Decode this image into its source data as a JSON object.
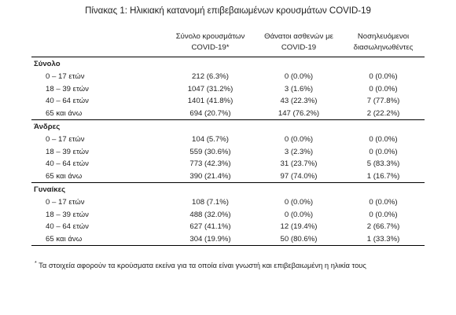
{
  "title": "Πίνακας 1: Ηλικιακή κατανομή επιβεβαιωμένων κρουσμάτων COVID-19",
  "columns": [
    {
      "line1": "Σύνολο κρουσμάτων",
      "line2": "COVID-19*"
    },
    {
      "line1": "Θάνατοι ασθενών με",
      "line2": "COVID-19"
    },
    {
      "line1": "Νοσηλευόμενοι",
      "line2": "διασωληνωθέντες"
    }
  ],
  "groups": [
    {
      "name": "Σύνολο",
      "rows": [
        {
          "age": "0 – 17 ετών",
          "cases": "212 (6.3%)",
          "deaths": "0 (0.0%)",
          "intubated": "0 (0.0%)"
        },
        {
          "age": "18 – 39 ετών",
          "cases": "1047 (31.2%)",
          "deaths": "3 (1.6%)",
          "intubated": "0 (0.0%)"
        },
        {
          "age": "40 – 64 ετών",
          "cases": "1401 (41.8%)",
          "deaths": "43 (22.3%)",
          "intubated": "7 (77.8%)"
        },
        {
          "age": "65 και άνω",
          "cases": "694 (20.7%)",
          "deaths": "147 (76.2%)",
          "intubated": "2 (22.2%)"
        }
      ]
    },
    {
      "name": "Άνδρες",
      "rows": [
        {
          "age": "0 – 17 ετών",
          "cases": "104 (5.7%)",
          "deaths": "0 (0.0%)",
          "intubated": "0 (0.0%)"
        },
        {
          "age": "18 – 39 ετών",
          "cases": "559 (30.6%)",
          "deaths": "3 (2.3%)",
          "intubated": "0 (0.0%)"
        },
        {
          "age": "40 – 64 ετών",
          "cases": "773 (42.3%)",
          "deaths": "31 (23.7%)",
          "intubated": "5 (83.3%)"
        },
        {
          "age": "65 και άνω",
          "cases": "390 (21.4%)",
          "deaths": "97 (74.0%)",
          "intubated": "1 (16.7%)"
        }
      ]
    },
    {
      "name": "Γυναίκες",
      "rows": [
        {
          "age": "0 – 17 ετών",
          "cases": "108 (7.1%)",
          "deaths": "0 (0.0%)",
          "intubated": "0 (0.0%)"
        },
        {
          "age": "18 – 39 ετών",
          "cases": "488 (32.0%)",
          "deaths": "0 (0.0%)",
          "intubated": "0 (0.0%)"
        },
        {
          "age": "40 – 64 ετών",
          "cases": "627 (41.1%)",
          "deaths": "12 (19.4%)",
          "intubated": "2 (66.7%)"
        },
        {
          "age": "65 και άνω",
          "cases": "304 (19.9%)",
          "deaths": "50 (80.6%)",
          "intubated": "1 (33.3%)"
        }
      ]
    }
  ],
  "footnote": {
    "marker": "*",
    "text": " Τα στοιχεία αφορούν τα κρούσματα εκείνα για τα οποία είναι γνωστή και επιβεβαιωμένη η ηλικία τους"
  }
}
